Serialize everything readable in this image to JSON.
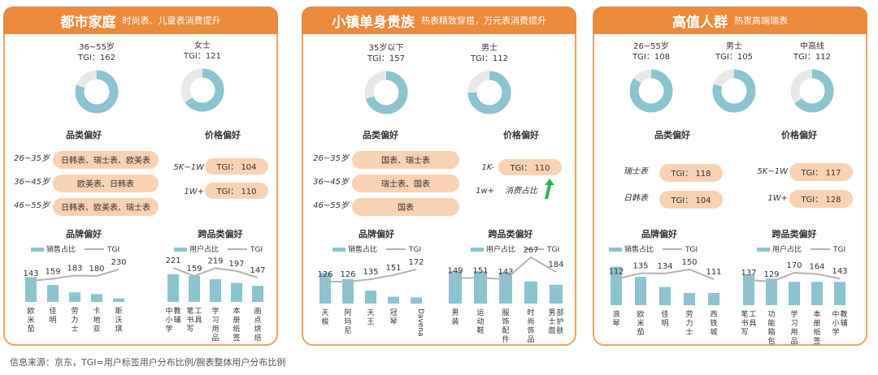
{
  "footer": "信息来源：京东，TGI=用户标签用户分布比例/腕表整体用户分布比例",
  "colors": {
    "accent": "#ec8a3c",
    "border": "#f0a35e",
    "pill": "#f8d2b3",
    "bar": "#8cc4cf",
    "line": "#b3b3b3",
    "donut_fill": "#8cc4cf",
    "donut_bg": "#e9e9e9"
  },
  "panels": [
    {
      "title": "都市家庭",
      "subtitle": "时尚表、儿童表消费提升",
      "donuts": [
        {
          "label": "36~55岁",
          "tgi": "TGI：162",
          "pct": 0.8
        },
        {
          "label": "女士",
          "tgi": "TGI：121",
          "pct": 0.65
        }
      ],
      "cat_title": "品类偏好",
      "price_title": "价格偏好",
      "cats": [
        {
          "label": "26~35岁",
          "text": "日韩表、瑞士表、欧美表"
        },
        {
          "label": "36~45岁",
          "text": "欧美表、日韩表"
        },
        {
          "label": "46~55岁",
          "text": "日韩表、欧美表、瑞士表"
        }
      ],
      "prices": [
        {
          "label": "5K~1W",
          "text": "TGI： 104"
        },
        {
          "label": "1W+",
          "text": "TGI： 110"
        }
      ],
      "brand_title": "品牌偏好",
      "cross_title": "跨品类偏好",
      "legend_bar": "销售占比",
      "legend_line": "TGI",
      "legend_bar2": "用户占比",
      "legend_line2": "TGI"
    },
    {
      "title": "小镇单身贵族",
      "subtitle": "热表精致穿搭，万元表消费提升",
      "donuts": [
        {
          "label": "35岁以下",
          "tgi": "TGI：157",
          "pct": 0.7
        },
        {
          "label": "男士",
          "tgi": "TGI：112",
          "pct": 0.75
        }
      ],
      "cat_title": "品类偏好",
      "price_title": "价格偏好",
      "cats": [
        {
          "label": "26~35岁",
          "text": "国表、瑞士表"
        },
        {
          "label": "36~45岁",
          "text": "瑞士表、国表"
        },
        {
          "label": "46~55岁",
          "text": "国表"
        }
      ],
      "prices": [
        {
          "label": "1K-",
          "text": "TGI： 110"
        },
        {
          "label": "1w+",
          "text": "消费占比"
        }
      ],
      "brand_title": "品牌偏好",
      "cross_title": "跨品类偏好",
      "legend_bar": "销售占比",
      "legend_line": "TGI",
      "legend_bar2": "用户占比",
      "legend_line2": "TGI"
    },
    {
      "title": "高值人群",
      "subtitle": "热衷高端瑞表",
      "donuts": [
        {
          "label": "26~55岁",
          "tgi": "TGI：108",
          "pct": 0.85
        },
        {
          "label": "男士",
          "tgi": "TGI：105",
          "pct": 0.8
        },
        {
          "label": "中高线",
          "tgi": "TGI：112",
          "pct": 0.65
        }
      ],
      "cat_title": "品类偏好",
      "price_title": "价格偏好",
      "cats": [
        {
          "label": "瑞士表",
          "text": "TGI： 118"
        },
        {
          "label": "日韩表",
          "text": "TGI： 104"
        }
      ],
      "prices": [
        {
          "label": "5K~1W",
          "text": "TGI： 117"
        },
        {
          "label": "1W+",
          "text": "TGI： 128"
        }
      ],
      "brand_title": "品牌偏好",
      "cross_title": "跨品类偏好",
      "legend_bar": "销售占比",
      "legend_line": "TGI",
      "legend_bar2": "用户占比",
      "legend_line2": "TGI"
    }
  ],
  "chart_data": [
    {
      "type": "bar",
      "panel": "都市家庭",
      "title": "品牌偏好",
      "categories": [
        "欧米茄",
        "佳明",
        "劳力士",
        "卡地亚",
        "斯沃琪"
      ],
      "series": [
        {
          "name": "销售占比",
          "values": [
            0.85,
            0.58,
            0.33,
            0.27,
            0.12
          ]
        },
        {
          "name": "TGI",
          "values": [
            143,
            159,
            183,
            180,
            230
          ]
        }
      ]
    },
    {
      "type": "bar",
      "panel": "都市家庭",
      "title": "跨品类偏好",
      "categories": [
        "中小学教辅",
        "笔书写工具",
        "学习用品",
        "本册纸签",
        "画点烘焙"
      ],
      "series": [
        {
          "name": "用户占比",
          "values": [
            0.95,
            0.9,
            0.78,
            0.65,
            0.55
          ]
        },
        {
          "name": "TGI",
          "values": [
            221,
            159,
            219,
            197,
            147
          ]
        }
      ]
    },
    {
      "type": "bar",
      "panel": "小镇单身贵族",
      "title": "品牌偏好",
      "categories": [
        "天梭",
        "阿玛尼",
        "天王",
        "冠琴",
        "Davena"
      ],
      "series": [
        {
          "name": "销售占比",
          "values": [
            0.9,
            0.72,
            0.38,
            0.2,
            0.18
          ]
        },
        {
          "name": "TGI",
          "values": [
            126,
            126,
            135,
            151,
            172
          ]
        }
      ]
    },
    {
      "type": "bar",
      "panel": "小镇单身贵族",
      "title": "跨品类偏好",
      "categories": [
        "男装",
        "运动鞋",
        "服饰配件",
        "时尚饰品",
        "男士面部护肤"
      ],
      "series": [
        {
          "name": "用户占比",
          "values": [
            0.95,
            0.95,
            0.92,
            0.65,
            0.55
          ]
        },
        {
          "name": "TGI",
          "values": [
            149,
            151,
            143,
            267,
            184
          ]
        }
      ]
    },
    {
      "type": "bar",
      "panel": "高值人群",
      "title": "品牌偏好",
      "categories": [
        "浪琴",
        "欧米茄",
        "佳明",
        "劳力士",
        "西铁城"
      ],
      "series": [
        {
          "name": "销售占比",
          "values": [
            0.95,
            0.7,
            0.45,
            0.3,
            0.3
          ]
        },
        {
          "name": "TGI",
          "values": [
            112,
            135,
            134,
            150,
            111
          ]
        }
      ]
    },
    {
      "type": "bar",
      "panel": "高值人群",
      "title": "跨品类偏好",
      "categories": [
        "笔书写工具",
        "功能箱包",
        "学习用品",
        "本册纸签",
        "中小学教辅"
      ],
      "series": [
        {
          "name": "用户占比",
          "values": [
            0.95,
            0.82,
            0.72,
            0.72,
            0.72
          ]
        },
        {
          "name": "TGI",
          "values": [
            137,
            129,
            170,
            164,
            143
          ]
        }
      ]
    }
  ]
}
